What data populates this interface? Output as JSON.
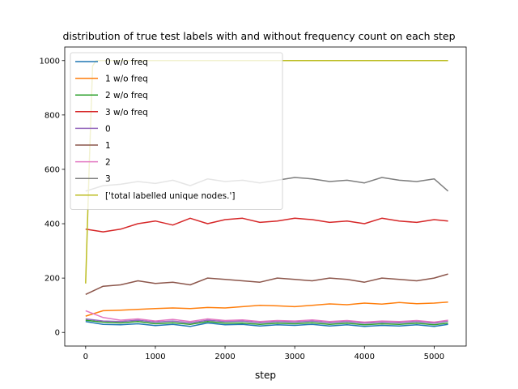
{
  "chart_data": {
    "type": "line",
    "title": "distribution of true test labels with and without frequency count on each step",
    "xlabel": "step",
    "ylabel": "",
    "xlim": [
      -300,
      5460
    ],
    "ylim": [
      -50,
      1050
    ],
    "xticks": [
      0,
      1000,
      2000,
      3000,
      4000,
      5000
    ],
    "yticks": [
      0,
      200,
      400,
      600,
      800,
      1000
    ],
    "grid": false,
    "legend_position": "upper-left",
    "series": [
      {
        "name": "0 w/o freq",
        "color": "#1f77b4",
        "x": [
          0,
          250,
          500,
          750,
          1000,
          1250,
          1500,
          1750,
          2000,
          2250,
          2500,
          2750,
          3000,
          3250,
          3500,
          3750,
          4000,
          4250,
          4500,
          4750,
          5000,
          5200
        ],
        "values": [
          40,
          30,
          28,
          32,
          25,
          30,
          22,
          35,
          28,
          30,
          24,
          28,
          26,
          30,
          24,
          28,
          22,
          26,
          24,
          28,
          22,
          30
        ]
      },
      {
        "name": "1 w/o freq",
        "color": "#ff7f0e",
        "x": [
          0,
          250,
          500,
          750,
          1000,
          1250,
          1500,
          1750,
          2000,
          2250,
          2500,
          2750,
          3000,
          3250,
          3500,
          3750,
          4000,
          4250,
          4500,
          4750,
          5000,
          5200
        ],
        "values": [
          60,
          80,
          82,
          85,
          88,
          90,
          88,
          92,
          90,
          95,
          100,
          98,
          95,
          100,
          105,
          102,
          108,
          104,
          110,
          106,
          108,
          112
        ]
      },
      {
        "name": "2 w/o freq",
        "color": "#2ca02c",
        "x": [
          0,
          250,
          500,
          750,
          1000,
          1250,
          1500,
          1750,
          2000,
          2250,
          2500,
          2750,
          3000,
          3250,
          3500,
          3750,
          4000,
          4250,
          4500,
          4750,
          5000,
          5200
        ],
        "values": [
          45,
          38,
          35,
          40,
          32,
          36,
          30,
          40,
          34,
          35,
          30,
          34,
          32,
          36,
          30,
          34,
          28,
          32,
          30,
          34,
          28,
          35
        ]
      },
      {
        "name": "3 w/o freq",
        "color": "#d62728",
        "x": [
          0,
          250,
          500,
          750,
          1000,
          1250,
          1500,
          1750,
          2000,
          2250,
          2500,
          2750,
          3000,
          3250,
          3500,
          3750,
          4000,
          4250,
          4500,
          4750,
          5000,
          5200
        ],
        "values": [
          380,
          370,
          380,
          400,
          410,
          395,
          420,
          400,
          415,
          420,
          405,
          410,
          420,
          415,
          405,
          410,
          400,
          420,
          410,
          405,
          415,
          410
        ]
      },
      {
        "name": "0",
        "color": "#9467bd",
        "x": [
          0,
          250,
          500,
          750,
          1000,
          1250,
          1500,
          1750,
          2000,
          2250,
          2500,
          2750,
          3000,
          3250,
          3500,
          3750,
          4000,
          4250,
          4500,
          4750,
          5000,
          5200
        ],
        "values": [
          50,
          42,
          40,
          45,
          38,
          42,
          35,
          45,
          40,
          42,
          36,
          40,
          38,
          42,
          36,
          40,
          34,
          38,
          36,
          40,
          34,
          42
        ]
      },
      {
        "name": "1",
        "color": "#8c564b",
        "x": [
          0,
          250,
          500,
          750,
          1000,
          1250,
          1500,
          1750,
          2000,
          2250,
          2500,
          2750,
          3000,
          3250,
          3500,
          3750,
          4000,
          4250,
          4500,
          4750,
          5000,
          5200
        ],
        "values": [
          140,
          170,
          175,
          190,
          180,
          185,
          175,
          200,
          195,
          190,
          185,
          200,
          195,
          190,
          200,
          195,
          185,
          200,
          195,
          190,
          200,
          215
        ]
      },
      {
        "name": "2",
        "color": "#e377c2",
        "x": [
          0,
          250,
          500,
          750,
          1000,
          1250,
          1500,
          1750,
          2000,
          2250,
          2500,
          2750,
          3000,
          3250,
          3500,
          3750,
          4000,
          4250,
          4500,
          4750,
          5000,
          5200
        ],
        "values": [
          80,
          55,
          45,
          50,
          42,
          48,
          40,
          50,
          44,
          46,
          40,
          44,
          42,
          46,
          40,
          44,
          38,
          42,
          40,
          44,
          38,
          45
        ]
      },
      {
        "name": "3",
        "color": "#7f7f7f",
        "x": [
          0,
          250,
          500,
          750,
          1000,
          1250,
          1500,
          1750,
          2000,
          2250,
          2500,
          2750,
          3000,
          3250,
          3500,
          3750,
          4000,
          4250,
          4500,
          4750,
          5000,
          5200
        ],
        "values": [
          520,
          540,
          545,
          555,
          548,
          560,
          540,
          565,
          555,
          560,
          550,
          560,
          570,
          565,
          555,
          560,
          550,
          570,
          560,
          555,
          565,
          520
        ]
      },
      {
        "name": "['total labelled unique nodes.']",
        "color": "#bcbd22",
        "x": [
          0,
          50,
          100,
          150,
          200,
          500,
          1000,
          2000,
          3000,
          4000,
          5000,
          5200
        ],
        "values": [
          180,
          600,
          980,
          1000,
          1000,
          1000,
          1000,
          1000,
          1000,
          1000,
          1000,
          1000
        ]
      }
    ]
  }
}
